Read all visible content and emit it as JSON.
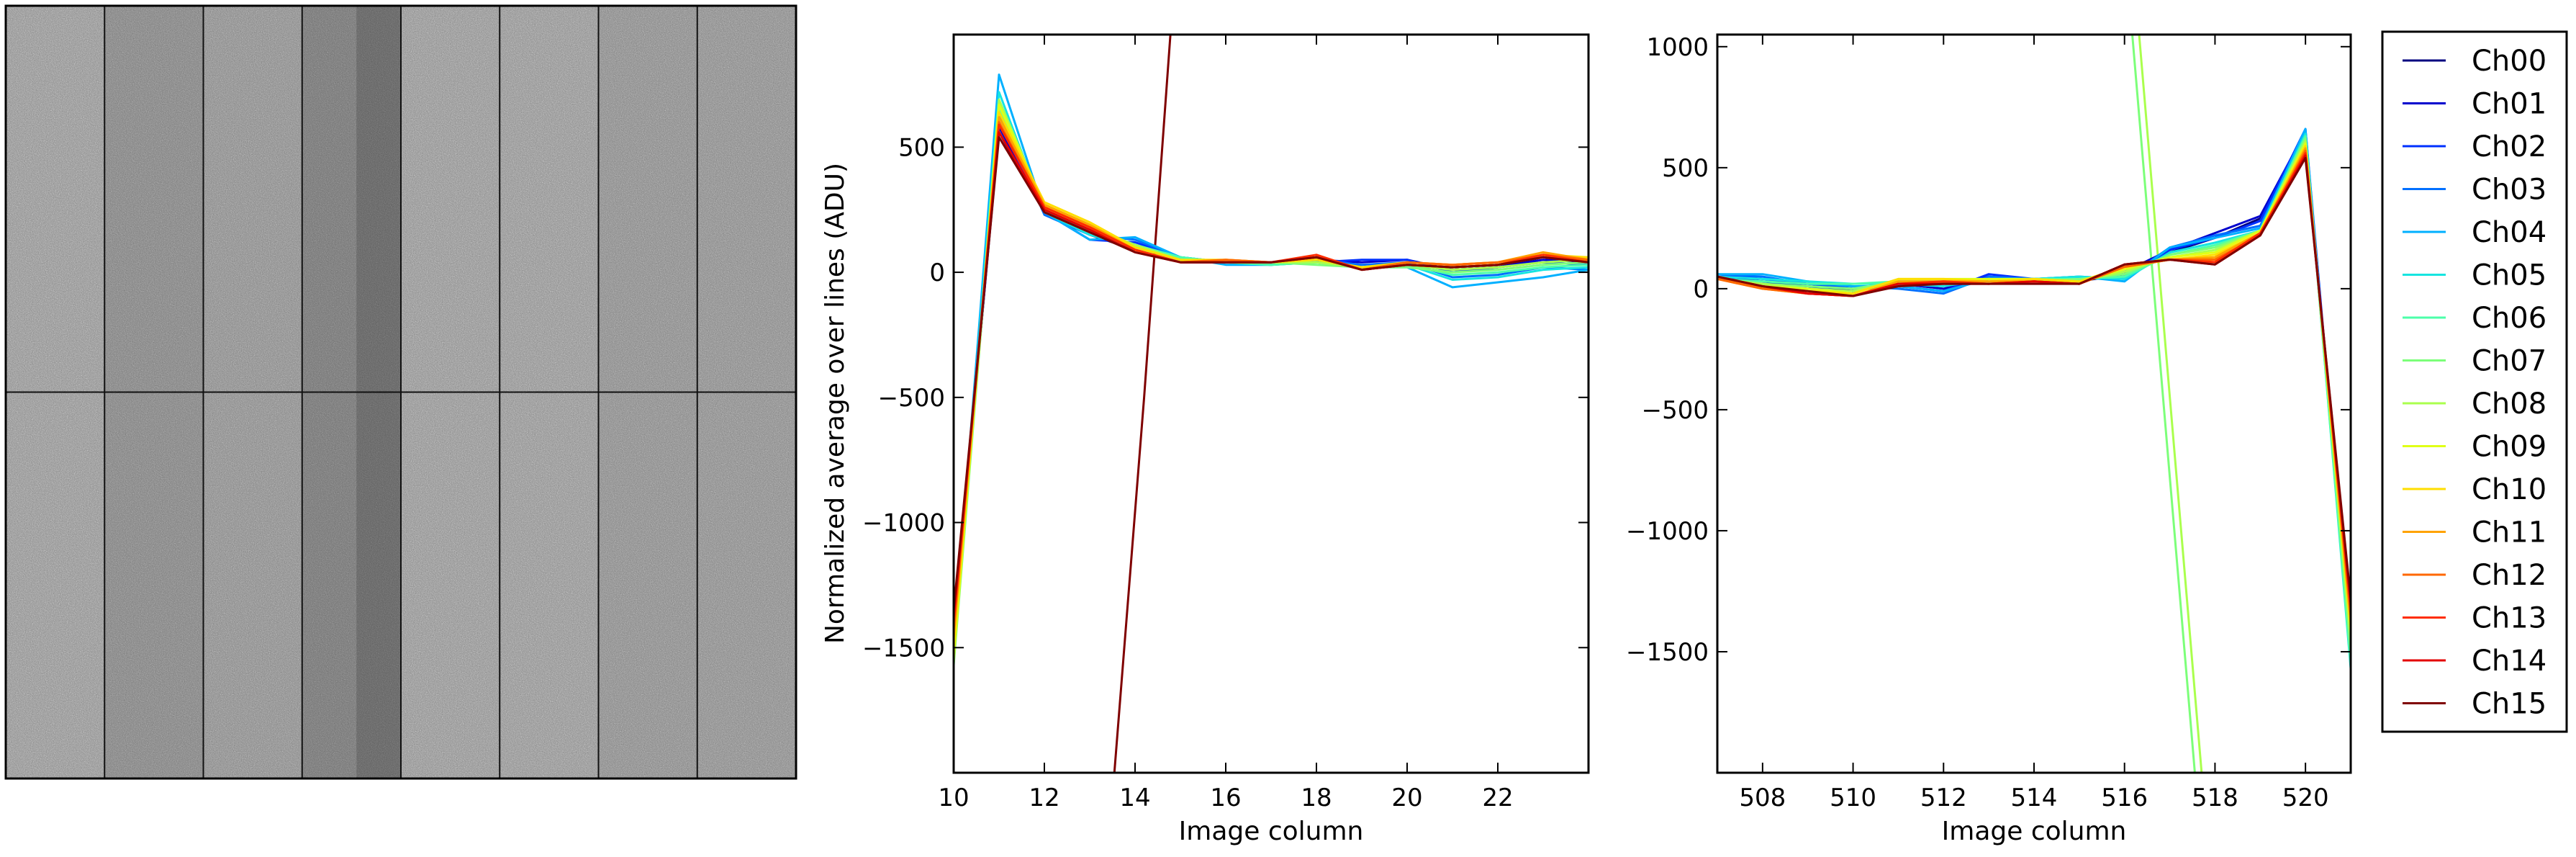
{
  "chart_data": [
    {
      "type": "heatmap",
      "description_label": "",
      "grid": {
        "columns": 8,
        "rows": 2
      },
      "colormap": "gray"
    },
    {
      "type": "line",
      "xlabel": "Image column",
      "ylabel": "Normalized average over lines (ADU)",
      "xlim": [
        10,
        24
      ],
      "ylim": [
        -2000,
        950
      ],
      "xticks": [
        10,
        12,
        14,
        16,
        18,
        20,
        22
      ],
      "yticks": [
        -1500,
        -1000,
        -500,
        0,
        500
      ],
      "x": [
        10,
        11,
        12,
        13,
        14,
        15,
        16,
        17,
        18,
        19,
        20,
        21,
        22,
        23,
        24
      ],
      "series": [
        {
          "name": "Ch00",
          "color": "#00007f",
          "values": [
            -1420,
            560,
            240,
            150,
            90,
            40,
            40,
            40,
            60,
            20,
            30,
            10,
            20,
            60,
            40
          ]
        },
        {
          "name": "Ch01",
          "color": "#0000cd",
          "values": [
            -1450,
            580,
            250,
            160,
            100,
            50,
            40,
            40,
            50,
            40,
            50,
            10,
            20,
            50,
            40
          ]
        },
        {
          "name": "Ch02",
          "color": "#0030ff",
          "values": [
            -1480,
            600,
            240,
            130,
            120,
            60,
            40,
            40,
            40,
            50,
            50,
            0,
            20,
            40,
            30
          ]
        },
        {
          "name": "Ch03",
          "color": "#0070ff",
          "values": [
            -1460,
            640,
            230,
            150,
            130,
            60,
            40,
            30,
            50,
            30,
            40,
            -20,
            -10,
            20,
            10
          ]
        },
        {
          "name": "Ch04",
          "color": "#00b0ff",
          "values": [
            -1500,
            790,
            240,
            130,
            140,
            60,
            30,
            30,
            40,
            20,
            20,
            -60,
            -40,
            -20,
            10
          ]
        },
        {
          "name": "Ch05",
          "color": "#16e5e0",
          "values": [
            -1520,
            720,
            240,
            150,
            100,
            60,
            40,
            30,
            40,
            20,
            30,
            -30,
            -20,
            10,
            20
          ]
        },
        {
          "name": "Ch06",
          "color": "#4cffaa",
          "values": [
            -1550,
            680,
            240,
            160,
            110,
            60,
            40,
            30,
            40,
            20,
            30,
            -10,
            0,
            20,
            30
          ]
        },
        {
          "name": "Ch07",
          "color": "#7cff79",
          "values": [
            -1570,
            650,
            250,
            170,
            100,
            50,
            40,
            40,
            30,
            20,
            20,
            0,
            10,
            30,
            40
          ]
        },
        {
          "name": "Ch08",
          "color": "#aaff4d",
          "values": [
            -1560,
            690,
            260,
            180,
            110,
            50,
            40,
            40,
            40,
            20,
            30,
            10,
            20,
            40,
            50
          ]
        },
        {
          "name": "Ch09",
          "color": "#e0ff16",
          "values": [
            -1540,
            670,
            270,
            190,
            100,
            50,
            40,
            40,
            50,
            20,
            30,
            20,
            30,
            60,
            60
          ]
        },
        {
          "name": "Ch10",
          "color": "#ffde00",
          "values": [
            -1500,
            640,
            280,
            200,
            100,
            50,
            50,
            40,
            50,
            20,
            40,
            30,
            40,
            70,
            60
          ]
        },
        {
          "name": "Ch11",
          "color": "#ffa300",
          "values": [
            -1460,
            620,
            270,
            190,
            90,
            40,
            50,
            40,
            60,
            10,
            40,
            30,
            40,
            80,
            50
          ]
        },
        {
          "name": "Ch12",
          "color": "#ff6800",
          "values": [
            -1430,
            600,
            260,
            180,
            90,
            40,
            50,
            40,
            60,
            10,
            40,
            30,
            40,
            70,
            50
          ]
        },
        {
          "name": "Ch13",
          "color": "#ff2d00",
          "values": [
            -1400,
            590,
            260,
            180,
            90,
            40,
            40,
            40,
            70,
            10,
            30,
            20,
            30,
            70,
            40
          ]
        },
        {
          "name": "Ch14",
          "color": "#e30000",
          "values": [
            -1380,
            560,
            250,
            170,
            80,
            40,
            40,
            40,
            60,
            10,
            30,
            20,
            30,
            60,
            40
          ]
        },
        {
          "name": "Ch15",
          "color": "#7f0000",
          "values": [
            -1350,
            540,
            240,
            160,
            80,
            40,
            40,
            40,
            60,
            10,
            30,
            20,
            30,
            60,
            40
          ]
        }
      ],
      "outlier_line": {
        "color": "#7f0000",
        "points": [
          [
            13.5,
            -2100
          ],
          [
            14.2,
            -500
          ],
          [
            14.8,
            1000
          ]
        ]
      }
    },
    {
      "type": "line",
      "xlabel": "Image column",
      "ylabel": "",
      "xlim": [
        507,
        521
      ],
      "ylim": [
        -2000,
        1050
      ],
      "xticks": [
        508,
        510,
        512,
        514,
        516,
        518,
        520
      ],
      "yticks": [
        -1500,
        -1000,
        -500,
        0,
        500,
        1000
      ],
      "x": [
        507,
        508,
        509,
        510,
        511,
        512,
        513,
        514,
        515,
        516,
        517,
        518,
        519,
        520,
        521
      ],
      "series": [
        {
          "name": "Ch00",
          "color": "#00007f",
          "values": [
            40,
            20,
            10,
            -10,
            20,
            20,
            40,
            30,
            30,
            60,
            150,
            210,
            290,
            640,
            -1520
          ]
        },
        {
          "name": "Ch01",
          "color": "#0000cd",
          "values": [
            50,
            30,
            10,
            -10,
            20,
            0,
            50,
            30,
            30,
            70,
            160,
            230,
            300,
            650,
            -1480
          ]
        },
        {
          "name": "Ch02",
          "color": "#0030ff",
          "values": [
            60,
            40,
            20,
            0,
            10,
            -10,
            60,
            40,
            40,
            50,
            160,
            210,
            280,
            660,
            -1460
          ]
        },
        {
          "name": "Ch03",
          "color": "#0070ff",
          "values": [
            60,
            50,
            20,
            10,
            0,
            -20,
            50,
            40,
            50,
            40,
            170,
            220,
            260,
            650,
            -1500
          ]
        },
        {
          "name": "Ch04",
          "color": "#00b0ff",
          "values": [
            60,
            60,
            30,
            10,
            10,
            -10,
            40,
            40,
            50,
            30,
            170,
            210,
            250,
            660,
            -1530
          ]
        },
        {
          "name": "Ch05",
          "color": "#16e5e0",
          "values": [
            50,
            40,
            30,
            20,
            20,
            10,
            40,
            40,
            50,
            40,
            150,
            190,
            240,
            640,
            -1570
          ]
        },
        {
          "name": "Ch06",
          "color": "#4cffaa",
          "values": [
            40,
            30,
            20,
            20,
            30,
            20,
            40,
            40,
            40,
            50,
            140,
            180,
            240,
            630,
            -1550
          ]
        },
        {
          "name": "Ch07",
          "color": "#7cff79",
          "values": [
            40,
            20,
            10,
            0,
            30,
            30,
            40,
            30,
            40,
            60,
            140,
            170,
            240,
            620,
            -1500
          ]
        },
        {
          "name": "Ch08",
          "color": "#aaff4d",
          "values": [
            40,
            20,
            0,
            -10,
            30,
            30,
            40,
            30,
            30,
            70,
            130,
            160,
            240,
            610,
            -1450
          ]
        },
        {
          "name": "Ch09",
          "color": "#e0ff16",
          "values": [
            40,
            10,
            0,
            -20,
            40,
            40,
            40,
            40,
            30,
            80,
            130,
            150,
            240,
            600,
            -1420
          ]
        },
        {
          "name": "Ch10",
          "color": "#ffde00",
          "values": [
            40,
            10,
            -10,
            -20,
            40,
            40,
            30,
            40,
            30,
            90,
            120,
            140,
            230,
            590,
            -1400
          ]
        },
        {
          "name": "Ch11",
          "color": "#ffa300",
          "values": [
            40,
            0,
            -20,
            -30,
            30,
            30,
            30,
            30,
            20,
            90,
            120,
            130,
            230,
            580,
            -1380
          ]
        },
        {
          "name": "Ch12",
          "color": "#ff6800",
          "values": [
            40,
            0,
            -20,
            -30,
            20,
            30,
            20,
            30,
            20,
            90,
            120,
            120,
            220,
            570,
            -1350
          ]
        },
        {
          "name": "Ch13",
          "color": "#ff2d00",
          "values": [
            50,
            10,
            -20,
            -30,
            20,
            30,
            20,
            30,
            20,
            100,
            120,
            110,
            230,
            560,
            -1320
          ]
        },
        {
          "name": "Ch14",
          "color": "#e30000",
          "values": [
            50,
            10,
            -20,
            -30,
            20,
            20,
            20,
            30,
            20,
            100,
            120,
            100,
            220,
            550,
            -1300
          ]
        },
        {
          "name": "Ch15",
          "color": "#7f0000",
          "values": [
            50,
            10,
            -10,
            -30,
            10,
            20,
            20,
            20,
            20,
            100,
            120,
            100,
            220,
            540,
            -1280
          ]
        }
      ],
      "outlier_lines": [
        {
          "color": "#7cff79",
          "points": [
            [
              516.15,
              1100
            ],
            [
              517.6,
              -2100
            ]
          ]
        },
        {
          "color": "#aaff4d",
          "points": [
            [
              516.3,
              1100
            ],
            [
              517.75,
              -2100
            ]
          ]
        }
      ]
    }
  ],
  "legend": {
    "placement": "right",
    "entries": [
      "Ch00",
      "Ch01",
      "Ch02",
      "Ch03",
      "Ch04",
      "Ch05",
      "Ch06",
      "Ch07",
      "Ch08",
      "Ch09",
      "Ch10",
      "Ch11",
      "Ch12",
      "Ch13",
      "Ch14",
      "Ch15"
    ]
  }
}
